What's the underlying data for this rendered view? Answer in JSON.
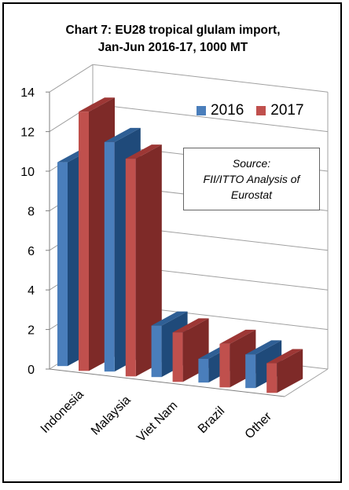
{
  "chart_data": {
    "type": "bar",
    "title_line1": "Chart 7: EU28 tropical glulam import,",
    "title_line2": "Jan-Jun 2016-17, 1000 MT",
    "categories": [
      "Indonesia",
      "Malaysia",
      "Viet Nam",
      "Brazil",
      "Other"
    ],
    "series": [
      {
        "name": "2016",
        "values": [
          10.3,
          11.6,
          2.6,
          1.2,
          1.7
        ]
      },
      {
        "name": "2017",
        "values": [
          13.1,
          11.0,
          2.5,
          2.2,
          1.5
        ]
      }
    ],
    "ylim": [
      0,
      14
    ],
    "yticks": [
      "0",
      "2",
      "4",
      "6",
      "8",
      "10",
      "12",
      "14"
    ],
    "grid": true,
    "legend_position": "top-right",
    "colors": {
      "2016_front": "#4a7ebb",
      "2016_top": "#2f5f95",
      "2016_side": "#1f4a7a",
      "2017_front": "#c0504d",
      "2017_top": "#9d3735",
      "2017_side": "#7e2a28"
    }
  },
  "source_box": {
    "line1": "Source:",
    "line2": "FII/ITTO Analysis of",
    "line3": "Eurostat"
  }
}
